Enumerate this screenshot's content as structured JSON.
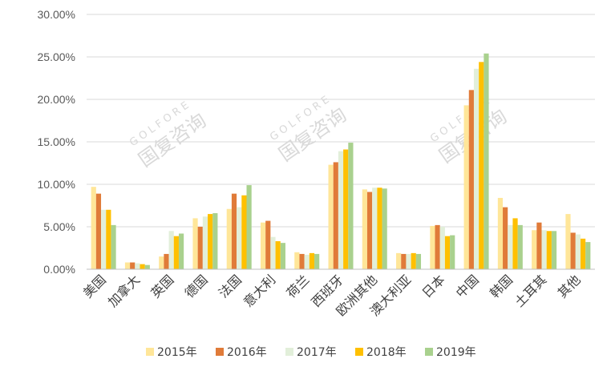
{
  "chart_data": {
    "type": "bar",
    "categories": [
      "美国",
      "加拿大",
      "英国",
      "德国",
      "法国",
      "意大利",
      "荷兰",
      "西班牙",
      "欧洲其他",
      "澳大利亚",
      "日本",
      "中国",
      "韩国",
      "土耳其",
      "其他"
    ],
    "series": [
      {
        "name": "2015年",
        "color": "#ffe699",
        "values": [
          9.7,
          0.8,
          1.5,
          6.0,
          7.1,
          5.5,
          2.0,
          12.3,
          9.4,
          1.9,
          5.1,
          19.3,
          8.4,
          4.6,
          6.5
        ]
      },
      {
        "name": "2016年",
        "color": "#e07b39",
        "values": [
          8.9,
          0.8,
          1.8,
          5.0,
          8.9,
          5.7,
          1.8,
          12.6,
          9.1,
          1.8,
          5.2,
          21.1,
          7.3,
          5.5,
          4.3
        ]
      },
      {
        "name": "2017年",
        "color": "#e2efda",
        "values": [
          7.0,
          0.7,
          4.5,
          6.2,
          7.3,
          3.8,
          1.7,
          13.9,
          9.6,
          1.8,
          5.0,
          23.6,
          5.2,
          4.6,
          4.1
        ]
      },
      {
        "name": "2018年",
        "color": "#ffc000",
        "values": [
          7.0,
          0.6,
          3.9,
          6.5,
          8.7,
          3.3,
          1.9,
          14.1,
          9.6,
          1.9,
          3.9,
          24.4,
          6.0,
          4.5,
          3.6
        ]
      },
      {
        "name": "2019年",
        "color": "#a9d18e",
        "values": [
          5.2,
          0.5,
          4.2,
          6.6,
          9.9,
          3.1,
          1.8,
          14.9,
          9.5,
          1.8,
          4.0,
          25.4,
          5.2,
          4.5,
          3.2
        ]
      }
    ],
    "yticks": [
      "0.00%",
      "5.00%",
      "10.00%",
      "15.00%",
      "20.00%",
      "25.00%",
      "30.00%"
    ],
    "ylim": [
      0,
      30
    ],
    "grid": true,
    "legend_position": "bottom"
  },
  "watermark": {
    "latin": "GOLFORE",
    "cjk": "国复咨询",
    "color": "#d9d9d9"
  }
}
